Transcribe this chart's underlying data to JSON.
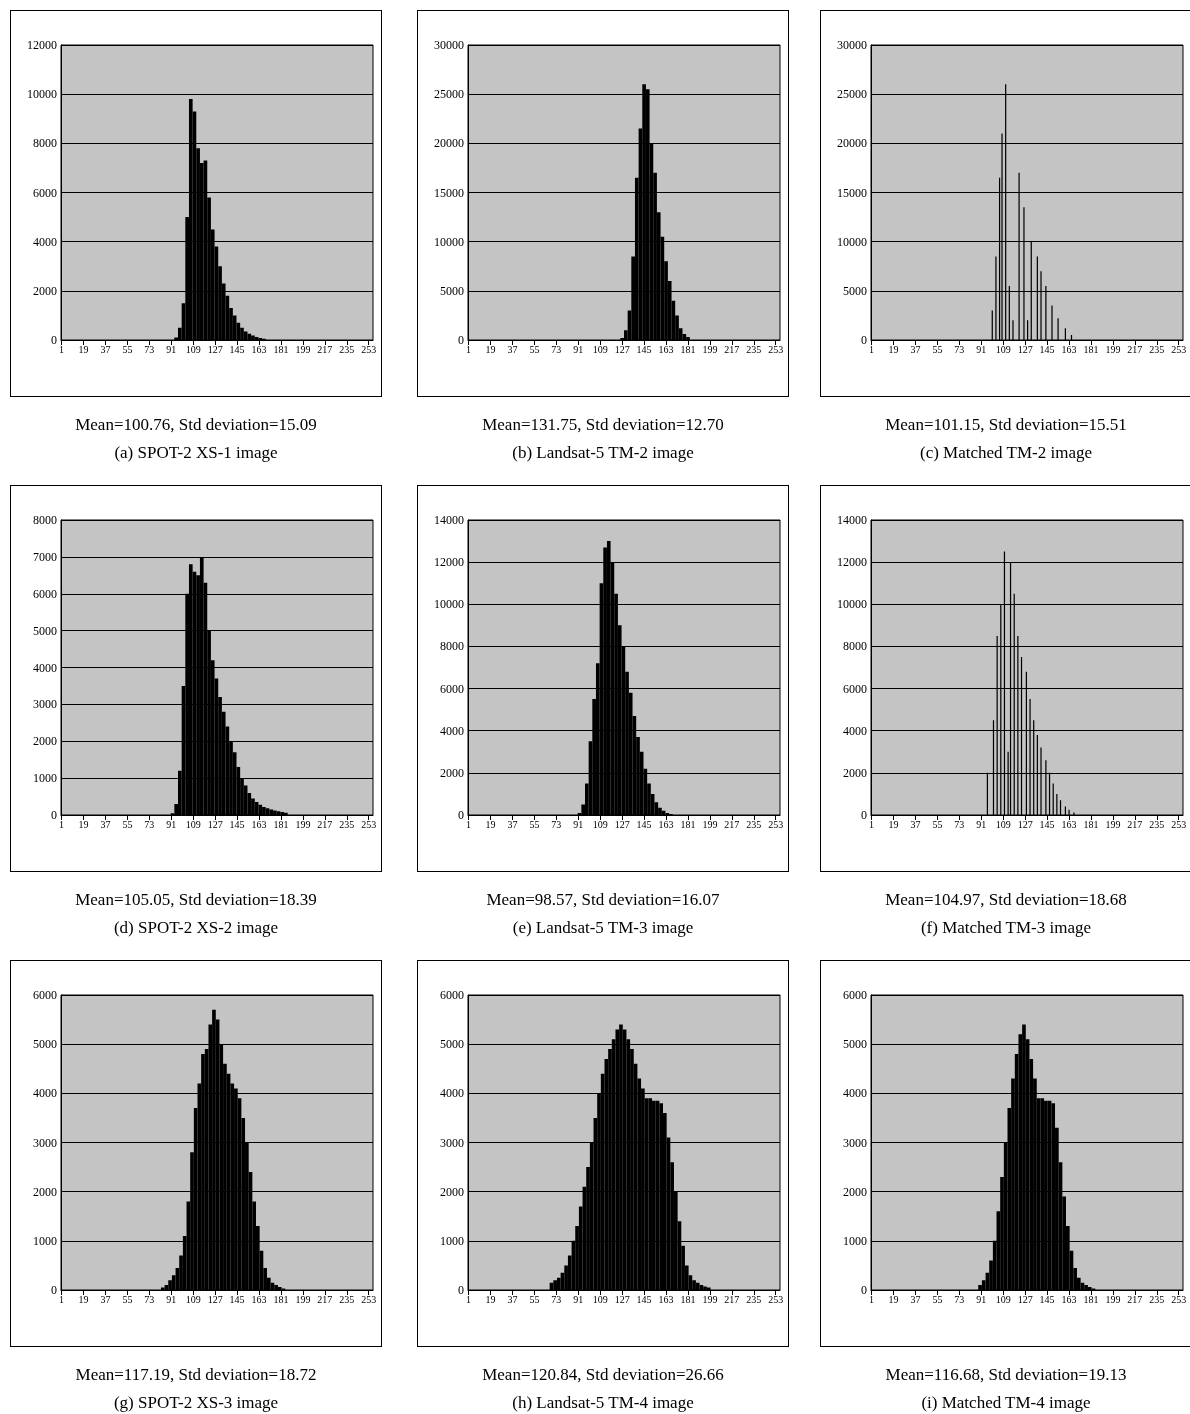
{
  "chart_data": [
    {
      "type": "histogram",
      "color": "#000000",
      "grid": "y",
      "xlim": [
        0.5,
        256.5
      ],
      "xticks": [
        1,
        19,
        37,
        55,
        73,
        91,
        109,
        127,
        145,
        163,
        181,
        199,
        217,
        235,
        253
      ],
      "ylim": [
        0,
        12000
      ],
      "yticks": [
        0,
        2000,
        4000,
        6000,
        8000,
        10000,
        12000
      ],
      "annotations": [
        "Mean=100.76, Std deviation=15.09",
        "(a) SPOT-2 XS-1 image"
      ],
      "bins": [
        93.5,
        96.5,
        99.5,
        102.5,
        105.5,
        108.5,
        111.5,
        114.5,
        117.5,
        120.5,
        123.5,
        126.5,
        129.5,
        132.5,
        135.5,
        138.5,
        141.5,
        144.5,
        147.5,
        150.5,
        153.5,
        156.5,
        159.5,
        162.5,
        165.5,
        168.5,
        171.5
      ],
      "values": [
        100,
        500,
        1500,
        5000,
        9800,
        9300,
        7800,
        7200,
        7300,
        5800,
        4500,
        3800,
        3000,
        2300,
        1800,
        1300,
        1000,
        700,
        500,
        350,
        250,
        180,
        120,
        80,
        50,
        null
      ]
    },
    {
      "type": "histogram",
      "color": "#000000",
      "grid": "y",
      "xlim": [
        0.5,
        256.5
      ],
      "xticks": [
        1,
        19,
        37,
        55,
        73,
        91,
        109,
        127,
        145,
        163,
        181,
        199,
        217,
        235,
        253
      ],
      "ylim": [
        0,
        30000
      ],
      "yticks": [
        0,
        5000,
        10000,
        15000,
        20000,
        25000,
        30000
      ],
      "annotations": [
        "Mean=131.75, Std deviation=12.70",
        "(b) Landsat-5 TM-2 image"
      ],
      "bins": [
        125.5,
        128.5,
        131.5,
        134.5,
        137.5,
        140.5,
        143.5,
        146.5,
        149.5,
        152.5,
        155.5,
        158.5,
        161.5,
        164.5,
        167.5,
        170.5,
        173.5,
        176.5,
        179.5,
        182.5,
        185.5
      ],
      "values": [
        200,
        1000,
        3000,
        8500,
        16500,
        21500,
        26000,
        25500,
        20000,
        17000,
        13000,
        10500,
        8000,
        6000,
        4000,
        2500,
        1200,
        600,
        300,
        null
      ]
    },
    {
      "type": "bar",
      "color": "#000000",
      "grid": "y",
      "xlim": [
        0.5,
        256.5
      ],
      "xticks": [
        1,
        19,
        37,
        55,
        73,
        91,
        109,
        127,
        145,
        163,
        181,
        199,
        217,
        235,
        253
      ],
      "ylim": [
        0,
        30000
      ],
      "yticks": [
        0,
        5000,
        10000,
        15000,
        20000,
        25000,
        30000
      ],
      "annotations": [
        "Mean=101.15, Std deviation=15.51",
        "(c) Matched TM-2 image"
      ],
      "x": [
        100,
        103,
        106,
        108,
        111,
        114,
        117,
        122,
        126,
        129,
        132,
        137,
        140,
        144,
        149,
        154,
        160,
        165
      ],
      "values": [
        3000,
        8500,
        16500,
        21000,
        26000,
        5500,
        2000,
        17000,
        13500,
        2000,
        10000,
        8500,
        7000,
        5500,
        3500,
        2200,
        1200,
        500
      ]
    },
    {
      "type": "histogram",
      "color": "#000000",
      "grid": "y",
      "xlim": [
        0.5,
        256.5
      ],
      "xticks": [
        1,
        19,
        37,
        55,
        73,
        91,
        109,
        127,
        145,
        163,
        181,
        199,
        217,
        235,
        253
      ],
      "ylim": [
        0,
        8000
      ],
      "yticks": [
        0,
        1000,
        2000,
        3000,
        4000,
        5000,
        6000,
        7000,
        8000
      ],
      "annotations": [
        "Mean=105.05, Std deviation=18.39",
        "(d) SPOT-2 XS-2 image"
      ],
      "bins": [
        90.5,
        93.5,
        96.5,
        99.5,
        102.5,
        105.5,
        108.5,
        111.5,
        114.5,
        117.5,
        120.5,
        123.5,
        126.5,
        129.5,
        132.5,
        135.5,
        138.5,
        141.5,
        144.5,
        147.5,
        150.5,
        153.5,
        156.5,
        159.5,
        162.5,
        165.5,
        168.5,
        171.5,
        174.5,
        177.5,
        180.5,
        183.5,
        186.5
      ],
      "values": [
        50,
        300,
        1200,
        3500,
        6000,
        6800,
        6600,
        6500,
        7000,
        6300,
        5000,
        4200,
        3700,
        3200,
        2800,
        2400,
        2000,
        1700,
        1300,
        1000,
        800,
        600,
        450,
        350,
        280,
        220,
        180,
        150,
        120,
        100,
        80,
        60
      ]
    },
    {
      "type": "histogram",
      "color": "#000000",
      "grid": "y",
      "xlim": [
        0.5,
        256.5
      ],
      "xticks": [
        1,
        19,
        37,
        55,
        73,
        91,
        109,
        127,
        145,
        163,
        181,
        199,
        217,
        235,
        253
      ],
      "ylim": [
        0,
        14000
      ],
      "yticks": [
        0,
        2000,
        4000,
        6000,
        8000,
        10000,
        12000,
        14000
      ],
      "annotations": [
        "Mean=98.57, Std deviation=16.07",
        "(e) Landsat-5 TM-3 image"
      ],
      "bins": [
        90.5,
        93.5,
        96.5,
        99.5,
        102.5,
        105.5,
        108.5,
        111.5,
        114.5,
        117.5,
        120.5,
        123.5,
        126.5,
        129.5,
        132.5,
        135.5,
        138.5,
        141.5,
        144.5,
        147.5,
        150.5,
        153.5,
        156.5,
        159.5,
        162.5,
        165.5,
        168.5
      ],
      "values": [
        100,
        500,
        1500,
        3500,
        5500,
        7200,
        11000,
        12700,
        13000,
        12000,
        10500,
        9000,
        8000,
        6800,
        5800,
        4700,
        3700,
        3000,
        2200,
        1500,
        1000,
        600,
        350,
        200,
        100,
        50
      ]
    },
    {
      "type": "bar",
      "color": "#000000",
      "grid": "y",
      "xlim": [
        0.5,
        256.5
      ],
      "xticks": [
        1,
        19,
        37,
        55,
        73,
        91,
        109,
        127,
        145,
        163,
        181,
        199,
        217,
        235,
        253
      ],
      "ylim": [
        0,
        14000
      ],
      "yticks": [
        0,
        2000,
        4000,
        6000,
        8000,
        10000,
        12000,
        14000
      ],
      "annotations": [
        "Mean=104.97, Std deviation=18.68",
        "(f) Matched TM-3 image"
      ],
      "x": [
        96,
        101,
        104,
        107,
        110,
        113,
        115,
        118,
        121,
        124,
        128,
        131,
        134,
        137,
        140,
        144,
        147,
        150,
        153,
        156,
        160,
        163,
        167
      ],
      "values": [
        2000,
        4500,
        8500,
        10000,
        12500,
        3000,
        12000,
        10500,
        8500,
        7500,
        6800,
        5500,
        4500,
        3800,
        3200,
        2600,
        2000,
        1500,
        1000,
        700,
        400,
        250,
        120
      ]
    },
    {
      "type": "histogram",
      "color": "#000000",
      "grid": "y",
      "xlim": [
        0.5,
        256.5
      ],
      "xticks": [
        1,
        19,
        37,
        55,
        73,
        91,
        109,
        127,
        145,
        163,
        181,
        199,
        217,
        235,
        253
      ],
      "ylim": [
        0,
        6000
      ],
      "yticks": [
        0,
        1000,
        2000,
        3000,
        4000,
        5000,
        6000
      ],
      "annotations": [
        "Mean=117.19, Std deviation=18.72",
        "(g) SPOT-2 XS-3 image"
      ],
      "bins": [
        82.5,
        85.5,
        88.5,
        91.5,
        94.5,
        97.5,
        100.5,
        103.5,
        106.5,
        109.5,
        112.5,
        115.5,
        118.5,
        121.5,
        124.5,
        127.5,
        130.5,
        133.5,
        136.5,
        139.5,
        142.5,
        145.5,
        148.5,
        151.5,
        154.5,
        157.5,
        160.5,
        163.5,
        166.5,
        169.5,
        172.5,
        175.5,
        178.5,
        181.5,
        184.5
      ],
      "values": [
        50,
        100,
        200,
        300,
        450,
        700,
        1100,
        1800,
        2800,
        3700,
        4200,
        4800,
        4900,
        5400,
        5700,
        5500,
        5000,
        4600,
        4400,
        4200,
        4100,
        3900,
        3500,
        3000,
        2400,
        1800,
        1300,
        800,
        450,
        250,
        150,
        100,
        60,
        30
      ]
    },
    {
      "type": "histogram",
      "color": "#000000",
      "grid": "y",
      "xlim": [
        0.5,
        256.5
      ],
      "xticks": [
        1,
        19,
        37,
        55,
        73,
        91,
        109,
        127,
        145,
        163,
        181,
        199,
        217,
        235,
        253
      ],
      "ylim": [
        0,
        6000
      ],
      "yticks": [
        0,
        1000,
        2000,
        3000,
        4000,
        5000,
        6000
      ],
      "annotations": [
        "Mean=120.84, Std deviation=26.66",
        "(h) Landsat-5 TM-4 image"
      ],
      "bins": [
        67.5,
        70.5,
        73.5,
        76.5,
        79.5,
        82.5,
        85.5,
        88.5,
        91.5,
        94.5,
        97.5,
        100.5,
        103.5,
        106.5,
        109.5,
        112.5,
        115.5,
        118.5,
        121.5,
        124.5,
        127.5,
        130.5,
        133.5,
        136.5,
        139.5,
        142.5,
        145.5,
        148.5,
        151.5,
        154.5,
        157.5,
        160.5,
        163.5,
        166.5,
        169.5,
        172.5,
        175.5,
        178.5,
        181.5,
        184.5,
        187.5,
        190.5,
        193.5,
        196.5,
        199.5
      ],
      "values": [
        150,
        200,
        250,
        350,
        500,
        700,
        1000,
        1300,
        1700,
        2100,
        2500,
        3000,
        3500,
        4000,
        4400,
        4700,
        4900,
        5100,
        5300,
        5400,
        5300,
        5100,
        4900,
        4600,
        4300,
        4100,
        3900,
        3900,
        3850,
        3850,
        3800,
        3600,
        3100,
        2600,
        2000,
        1400,
        900,
        500,
        300,
        200,
        150,
        100,
        70,
        50
      ]
    },
    {
      "type": "histogram",
      "color": "#000000",
      "grid": "y",
      "xlim": [
        0.5,
        256.5
      ],
      "xticks": [
        1,
        19,
        37,
        55,
        73,
        91,
        109,
        127,
        145,
        163,
        181,
        199,
        217,
        235,
        253
      ],
      "ylim": [
        0,
        6000
      ],
      "yticks": [
        0,
        1000,
        2000,
        3000,
        4000,
        5000,
        6000
      ],
      "annotations": [
        "Mean=116.68, Std deviation=19.13",
        "(i) Matched TM-4 image"
      ],
      "bins": [
        88.5,
        91.5,
        94.5,
        97.5,
        100.5,
        103.5,
        106.5,
        109.5,
        112.5,
        115.5,
        118.5,
        121.5,
        124.5,
        127.5,
        130.5,
        133.5,
        136.5,
        139.5,
        142.5,
        145.5,
        148.5,
        151.5,
        154.5,
        157.5,
        160.5,
        163.5,
        166.5,
        169.5,
        172.5,
        175.5,
        178.5,
        181.5,
        184.5
      ],
      "values": [
        100,
        200,
        350,
        600,
        1000,
        1600,
        2300,
        3000,
        3700,
        4300,
        4800,
        5200,
        5400,
        5100,
        4700,
        4300,
        3900,
        3900,
        3850,
        3850,
        3800,
        3300,
        2600,
        1900,
        1300,
        800,
        450,
        250,
        150,
        100,
        60,
        30
      ]
    }
  ]
}
